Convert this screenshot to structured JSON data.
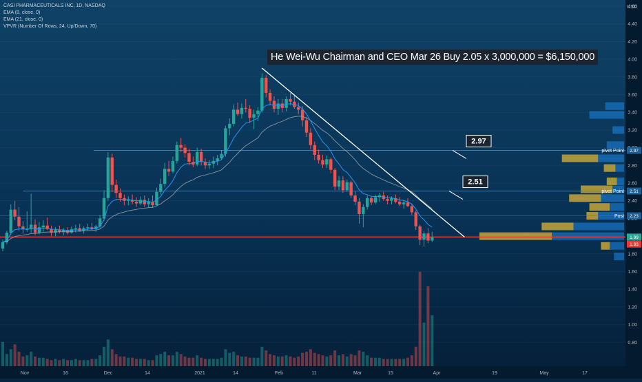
{
  "legend": {
    "symbol": "CASI PHARMACEUTICALS INC, 1D, NASDAQ",
    "ema8": "EMA (8, close, 0)",
    "ema21": "EMA (21, close, 0)",
    "vpvr": "VPVR (Number Of Rows, 24, Up/Down, 70)"
  },
  "headline": "He Wei-Wu Chairman and CEO Mar 26 Buy 2.05 x 3,000,000 = $6,150,000",
  "axis": {
    "currency": "USD",
    "y_ticks": [
      "4.60",
      "4.40",
      "4.20",
      "4.00",
      "3.80",
      "3.60",
      "3.40",
      "3.20",
      "3.00",
      "2.80",
      "2.60",
      "2.40",
      "2.20",
      "2.00",
      "1.80",
      "1.60",
      "1.40",
      "1.20",
      "1.00",
      "0.80"
    ],
    "x_ticks": [
      "Nov",
      "16",
      "Dec",
      "14",
      "2021",
      "14",
      "Feb",
      "11",
      "Mar",
      "15",
      "Apr",
      "19",
      "May",
      "17"
    ]
  },
  "levels": {
    "r297": {
      "callout": "2.97",
      "tag": "2.97",
      "label": "pivot Point"
    },
    "r251": {
      "callout": "2.51",
      "tag": "2.51",
      "label": "pivot Point"
    },
    "r223": {
      "tag": "2.23",
      "label": "Post"
    },
    "last": {
      "tag": "1.99"
    },
    "low": {
      "tag": "1.93"
    }
  },
  "colors": {
    "background": "#062540",
    "up": "#26a69a",
    "down": "#ef5350",
    "ema8": "#2196f3",
    "ema21": "#9aa4ad",
    "trendline": "#ffffff",
    "hline_red": "#e53935",
    "vp_up": "#1e88e5",
    "vp_down": "#c6a43a"
  },
  "chart_data": {
    "type": "candlestick",
    "ylim": [
      0.7,
      4.75
    ],
    "candles": [
      [
        1.86,
        1.96,
        1.83,
        1.93
      ],
      [
        1.93,
        2.06,
        1.91,
        2.04
      ],
      [
        2.04,
        2.36,
        2.01,
        2.3
      ],
      [
        2.3,
        2.4,
        2.18,
        2.22
      ],
      [
        2.22,
        2.33,
        2.06,
        2.11
      ],
      [
        2.11,
        2.17,
        2.03,
        2.08
      ],
      [
        2.08,
        2.28,
        2.05,
        2.08
      ],
      [
        2.08,
        2.48,
        2.04,
        2.13
      ],
      [
        2.13,
        2.19,
        2.01,
        2.04
      ],
      [
        2.04,
        2.16,
        2.02,
        2.1
      ],
      [
        2.1,
        2.18,
        2.05,
        2.12
      ],
      [
        2.12,
        2.21,
        2.07,
        2.08
      ],
      [
        2.08,
        2.12,
        2.0,
        2.04
      ],
      [
        2.04,
        2.1,
        2.0,
        2.07
      ],
      [
        2.07,
        2.12,
        2.03,
        2.05
      ],
      [
        2.05,
        2.09,
        2.01,
        2.07
      ],
      [
        2.07,
        2.1,
        2.02,
        2.04
      ],
      [
        2.04,
        2.11,
        2.03,
        2.08
      ],
      [
        2.08,
        2.13,
        2.04,
        2.09
      ],
      [
        2.09,
        2.14,
        2.05,
        2.06
      ],
      [
        2.06,
        2.11,
        2.03,
        2.09
      ],
      [
        2.09,
        2.14,
        2.06,
        2.1
      ],
      [
        2.1,
        2.15,
        2.07,
        2.08
      ],
      [
        2.08,
        2.13,
        2.05,
        2.11
      ],
      [
        2.11,
        2.24,
        2.09,
        2.2
      ],
      [
        2.2,
        2.52,
        2.17,
        2.43
      ],
      [
        2.43,
        2.95,
        2.4,
        2.89
      ],
      [
        2.89,
        2.93,
        2.5,
        2.58
      ],
      [
        2.58,
        2.64,
        2.43,
        2.49
      ],
      [
        2.49,
        2.54,
        2.39,
        2.43
      ],
      [
        2.43,
        2.47,
        2.35,
        2.4
      ],
      [
        2.4,
        2.45,
        2.35,
        2.41
      ],
      [
        2.41,
        2.47,
        2.36,
        2.39
      ],
      [
        2.39,
        2.44,
        2.33,
        2.37
      ],
      [
        2.37,
        2.45,
        2.35,
        2.41
      ],
      [
        2.41,
        2.46,
        2.33,
        2.36
      ],
      [
        2.36,
        2.43,
        2.32,
        2.39
      ],
      [
        2.39,
        2.46,
        2.32,
        2.35
      ],
      [
        2.35,
        2.55,
        2.34,
        2.5
      ],
      [
        2.5,
        2.65,
        2.47,
        2.59
      ],
      [
        2.59,
        2.83,
        2.55,
        2.76
      ],
      [
        2.76,
        2.85,
        2.68,
        2.73
      ],
      [
        2.73,
        2.9,
        2.71,
        2.85
      ],
      [
        2.85,
        3.07,
        2.82,
        3.03
      ],
      [
        3.03,
        3.11,
        2.95,
        3.0
      ],
      [
        3.0,
        3.04,
        2.89,
        2.94
      ],
      [
        2.94,
        2.99,
        2.8,
        2.84
      ],
      [
        2.84,
        2.9,
        2.78,
        2.81
      ],
      [
        2.81,
        3.0,
        2.79,
        2.95
      ],
      [
        2.95,
        2.99,
        2.8,
        2.84
      ],
      [
        2.84,
        2.88,
        2.76,
        2.8
      ],
      [
        2.8,
        2.86,
        2.76,
        2.82
      ],
      [
        2.82,
        2.9,
        2.77,
        2.85
      ],
      [
        2.85,
        2.92,
        2.8,
        2.88
      ],
      [
        2.88,
        2.97,
        2.86,
        2.93
      ],
      [
        2.93,
        3.25,
        2.9,
        3.22
      ],
      [
        3.22,
        3.33,
        3.14,
        3.27
      ],
      [
        3.27,
        3.49,
        3.24,
        3.43
      ],
      [
        3.43,
        3.51,
        3.36,
        3.38
      ],
      [
        3.38,
        3.5,
        3.33,
        3.45
      ],
      [
        3.45,
        3.55,
        3.4,
        3.44
      ],
      [
        3.44,
        3.48,
        3.28,
        3.34
      ],
      [
        3.34,
        3.43,
        3.21,
        3.38
      ],
      [
        3.38,
        3.46,
        3.3,
        3.42
      ],
      [
        3.42,
        3.84,
        3.4,
        3.79
      ],
      [
        3.79,
        3.82,
        3.57,
        3.62
      ],
      [
        3.62,
        3.66,
        3.48,
        3.53
      ],
      [
        3.53,
        3.58,
        3.4,
        3.44
      ],
      [
        3.44,
        3.55,
        3.37,
        3.5
      ],
      [
        3.5,
        3.55,
        3.4,
        3.45
      ],
      [
        3.45,
        3.58,
        3.41,
        3.55
      ],
      [
        3.55,
        3.62,
        3.48,
        3.52
      ],
      [
        3.52,
        3.59,
        3.44,
        3.46
      ],
      [
        3.46,
        3.51,
        3.38,
        3.43
      ],
      [
        3.43,
        3.47,
        3.24,
        3.31
      ],
      [
        3.31,
        3.35,
        3.12,
        3.17
      ],
      [
        3.17,
        3.22,
        2.98,
        3.03
      ],
      [
        3.03,
        3.07,
        2.86,
        2.92
      ],
      [
        2.92,
        2.98,
        2.82,
        2.86
      ],
      [
        2.86,
        2.92,
        2.77,
        2.81
      ],
      [
        2.81,
        2.91,
        2.77,
        2.87
      ],
      [
        2.87,
        2.89,
        2.71,
        2.75
      ],
      [
        2.75,
        2.77,
        2.52,
        2.56
      ],
      [
        2.56,
        2.68,
        2.52,
        2.63
      ],
      [
        2.63,
        2.68,
        2.49,
        2.52
      ],
      [
        2.52,
        2.64,
        2.5,
        2.61
      ],
      [
        2.61,
        2.63,
        2.43,
        2.46
      ],
      [
        2.46,
        2.51,
        2.35,
        2.39
      ],
      [
        2.39,
        2.43,
        2.14,
        2.25
      ],
      [
        2.25,
        2.36,
        2.1,
        2.33
      ],
      [
        2.33,
        2.46,
        2.3,
        2.43
      ],
      [
        2.43,
        2.45,
        2.35,
        2.38
      ],
      [
        2.38,
        2.47,
        2.36,
        2.44
      ],
      [
        2.44,
        2.49,
        2.39,
        2.46
      ],
      [
        2.46,
        2.5,
        2.4,
        2.42
      ],
      [
        2.42,
        2.46,
        2.36,
        2.4
      ],
      [
        2.4,
        2.45,
        2.36,
        2.43
      ],
      [
        2.43,
        2.47,
        2.37,
        2.39
      ],
      [
        2.39,
        2.44,
        2.34,
        2.36
      ],
      [
        2.36,
        2.41,
        2.31,
        2.38
      ],
      [
        2.38,
        2.43,
        2.33,
        2.34
      ],
      [
        2.34,
        2.37,
        2.24,
        2.27
      ],
      [
        2.27,
        2.29,
        2.07,
        2.11
      ],
      [
        2.11,
        2.13,
        1.9,
        1.96
      ],
      [
        1.96,
        2.06,
        1.88,
        2.03
      ],
      [
        2.03,
        2.09,
        1.92,
        1.95
      ],
      [
        1.95,
        2.05,
        1.93,
        1.99
      ]
    ],
    "volume": [
      0.2,
      0.1,
      0.14,
      0.18,
      0.12,
      0.08,
      0.09,
      0.12,
      0.08,
      0.07,
      0.07,
      0.06,
      0.05,
      0.06,
      0.05,
      0.06,
      0.05,
      0.05,
      0.06,
      0.05,
      0.05,
      0.05,
      0.06,
      0.06,
      0.09,
      0.16,
      0.22,
      0.14,
      0.1,
      0.08,
      0.08,
      0.07,
      0.07,
      0.06,
      0.06,
      0.06,
      0.05,
      0.05,
      0.09,
      0.1,
      0.12,
      0.09,
      0.09,
      0.12,
      0.1,
      0.08,
      0.07,
      0.07,
      0.09,
      0.07,
      0.06,
      0.06,
      0.06,
      0.06,
      0.07,
      0.14,
      0.11,
      0.12,
      0.09,
      0.08,
      0.08,
      0.07,
      0.07,
      0.07,
      0.16,
      0.13,
      0.1,
      0.09,
      0.08,
      0.08,
      0.09,
      0.08,
      0.07,
      0.08,
      0.11,
      0.12,
      0.14,
      0.11,
      0.1,
      0.09,
      0.08,
      0.09,
      0.13,
      0.09,
      0.1,
      0.08,
      0.1,
      0.09,
      0.13,
      0.12,
      0.09,
      0.07,
      0.07,
      0.07,
      0.06,
      0.06,
      0.06,
      0.06,
      0.06,
      0.06,
      0.07,
      0.09,
      0.16,
      0.78,
      0.36,
      0.66,
      0.42
    ],
    "ema8_points": 107,
    "ema21_points": 107,
    "trendline": [
      [
        64,
        3.9
      ],
      [
        114,
        1.99
      ]
    ],
    "volume_profile": [
      {
        "price": 3.47,
        "up": 0.13,
        "down": 0.0
      },
      {
        "price": 3.37,
        "up": 0.24,
        "down": 0.0
      },
      {
        "price": 3.2,
        "up": 0.08,
        "down": 0.0
      },
      {
        "price": 3.03,
        "up": 0.12,
        "down": 0.0
      },
      {
        "price": 2.88,
        "up": 0.18,
        "down": 0.25
      },
      {
        "price": 2.77,
        "up": 0.06,
        "down": 0.08
      },
      {
        "price": 2.62,
        "up": 0.05,
        "down": 0.07
      },
      {
        "price": 2.53,
        "up": 0.08,
        "down": 0.22
      },
      {
        "price": 2.43,
        "up": 0.16,
        "down": 0.22
      },
      {
        "price": 2.33,
        "up": 0.1,
        "down": 0.14
      },
      {
        "price": 2.23,
        "up": 0.18,
        "down": 0.08
      },
      {
        "price": 2.11,
        "up": 0.35,
        "down": 0.22
      },
      {
        "price": 2.0,
        "up": 0.5,
        "down": 0.5
      },
      {
        "price": 1.89,
        "up": 0.1,
        "down": 0.06
      },
      {
        "price": 1.77,
        "up": 0.07,
        "down": 0.0
      }
    ]
  }
}
